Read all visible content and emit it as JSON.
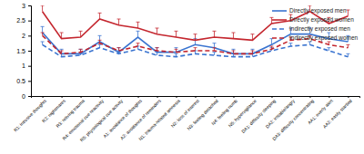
{
  "chart_data": {
    "type": "line",
    "categories": [
      "R1: intrusive thoughts",
      "R2: nightmares",
      "R3: reliving trauma",
      "R4: emotional cue reactivity",
      "R5: physiological cue activity",
      "A1: avoidance of thoughts",
      "A2: avoidance of reminders",
      "N1: trauma-related amnesia",
      "N2: loss of interest",
      "N3: feeling detached",
      "N4: feeling numb",
      "N5: hypervigilance",
      "DA1: difficulty sleeping",
      "DA2: irritable/angry",
      "DA3: difficulty concentrating",
      "AA1: overly alert",
      "AA2: easily startled"
    ],
    "series": [
      {
        "name": "Directly exposed men",
        "color": "#3a74d0",
        "line_style": "solid",
        "values": [
          2.1,
          1.4,
          1.4,
          1.8,
          1.45,
          1.95,
          1.45,
          1.45,
          1.7,
          1.6,
          1.4,
          1.4,
          1.7,
          2.05,
          2.05,
          1.9,
          1.8
        ],
        "errors": [
          0.2,
          0.15,
          0.15,
          0.2,
          0.15,
          0.2,
          0.15,
          0.15,
          0.2,
          0.15,
          0.15,
          0.15,
          0.2,
          0.2,
          0.2,
          0.2,
          0.2
        ]
      },
      {
        "name": "Directly exposed women",
        "color": "#c4262e",
        "line_style": "solid",
        "values": [
          2.8,
          1.9,
          1.95,
          2.55,
          2.35,
          2.25,
          2.05,
          1.95,
          1.85,
          1.95,
          1.9,
          1.85,
          2.4,
          2.5,
          2.8,
          2.4,
          2.65
        ],
        "errors": [
          0.2,
          0.2,
          0.2,
          0.2,
          0.2,
          0.2,
          0.2,
          0.2,
          0.2,
          0.2,
          0.2,
          0.2,
          0.2,
          0.2,
          0.2,
          0.2,
          0.2
        ]
      },
      {
        "name": "Indirectly exposed men",
        "color": "#3a74d0",
        "line_style": "dashed",
        "values": [
          1.7,
          1.3,
          1.35,
          1.6,
          1.4,
          1.55,
          1.35,
          1.3,
          1.4,
          1.35,
          1.3,
          1.3,
          1.5,
          1.65,
          1.7,
          1.5,
          1.3
        ],
        "errors": [
          0.1,
          0.1,
          0.1,
          0.1,
          0.1,
          0.1,
          0.1,
          0.1,
          0.1,
          0.1,
          0.1,
          0.1,
          0.1,
          0.1,
          0.1,
          0.1,
          0.1
        ]
      },
      {
        "name": "Indirectly exposed women",
        "color": "#c4262e",
        "line_style": "dashed",
        "values": [
          2.0,
          1.4,
          1.45,
          1.75,
          1.5,
          1.65,
          1.5,
          1.45,
          1.5,
          1.5,
          1.4,
          1.4,
          1.55,
          1.85,
          1.9,
          1.7,
          1.6
        ],
        "errors": [
          0.1,
          0.1,
          0.1,
          0.1,
          0.1,
          0.1,
          0.1,
          0.1,
          0.1,
          0.1,
          0.1,
          0.1,
          0.1,
          0.1,
          0.1,
          0.1,
          0.1
        ]
      }
    ],
    "ylim": [
      0,
      3
    ],
    "yticks": [
      0,
      0.5,
      1,
      1.5,
      2,
      2.5,
      3
    ],
    "grid": false,
    "legend": "top-right"
  }
}
